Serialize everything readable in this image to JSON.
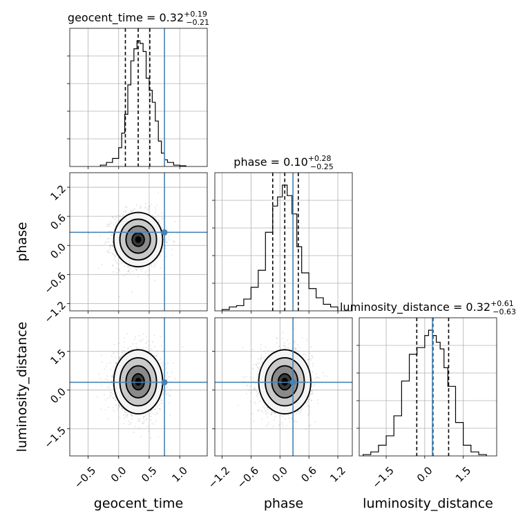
{
  "chart_data": {
    "type": "corner",
    "parameters": [
      "geocent_time",
      "phase",
      "luminosity_distance"
    ],
    "ranges": [
      [
        -0.8,
        1.45
      ],
      [
        -1.35,
        1.5
      ],
      [
        -2.55,
        2.8
      ]
    ],
    "ticks": [
      {
        "values": [
          -0.5,
          0.0,
          0.5,
          1.0
        ],
        "labels": [
          "−0.5",
          "0.0",
          "0.5",
          "1.0"
        ]
      },
      {
        "values": [
          -1.2,
          -0.6,
          0.0,
          0.6,
          1.2
        ],
        "labels": [
          "−1.2",
          "−0.6",
          "0.0",
          "0.6",
          "1.2"
        ]
      },
      {
        "values": [
          -1.5,
          0.0,
          1.5
        ],
        "labels": [
          "−1.5",
          "0.0",
          "1.5"
        ]
      }
    ],
    "truths": [
      0.75,
      0.27,
      0.3
    ],
    "grid": true,
    "truth_color": "#4682b4",
    "histograms": [
      {
        "parameter": "geocent_time",
        "title": {
          "name": "geocent_time",
          "median": "0.32",
          "plus": "+0.19",
          "minus": "−0.21"
        },
        "median": 0.32,
        "q_low": 0.11,
        "q_high": 0.51,
        "bin_edges": [
          -0.3,
          -0.2,
          -0.1,
          0.0,
          0.05,
          0.1,
          0.15,
          0.2,
          0.25,
          0.3,
          0.35,
          0.4,
          0.45,
          0.5,
          0.55,
          0.6,
          0.65,
          0.7,
          0.75,
          0.8,
          0.9,
          1.0,
          1.1
        ],
        "counts": [
          1,
          3,
          6,
          14,
          25,
          39,
          61,
          79,
          88,
          94,
          92,
          86,
          66,
          57,
          48,
          34,
          19,
          10,
          5,
          3,
          1,
          0.5
        ]
      },
      {
        "parameter": "phase",
        "title": {
          "name": "phase",
          "median": "0.10",
          "plus": "+0.28",
          "minus": "−0.25"
        },
        "median": 0.1,
        "q_low": -0.15,
        "q_high": 0.38,
        "bin_edges": [
          -1.2,
          -1.05,
          -0.9,
          -0.75,
          -0.6,
          -0.45,
          -0.3,
          -0.15,
          -0.05,
          0.05,
          0.15,
          0.25,
          0.35,
          0.45,
          0.6,
          0.75,
          0.9,
          1.05,
          1.2
        ],
        "counts": [
          1,
          3,
          4,
          9,
          18,
          31,
          60,
          80,
          87,
          96,
          88,
          74,
          49,
          29,
          17,
          10,
          5,
          3
        ]
      },
      {
        "parameter": "luminosity_distance",
        "title": {
          "name": "luminosity_distance",
          "median": "0.32",
          "plus": "+0.61",
          "minus": "−0.63"
        },
        "median": 0.32,
        "q_low": -0.31,
        "q_high": 0.93,
        "bin_edges": [
          -2.4,
          -2.1,
          -1.8,
          -1.5,
          -1.2,
          -0.9,
          -0.6,
          -0.3,
          0.0,
          0.15,
          0.3,
          0.45,
          0.6,
          0.75,
          0.9,
          1.2,
          1.5,
          1.8,
          2.1,
          2.4
        ],
        "counts": [
          1,
          3,
          8,
          15,
          30,
          56,
          76,
          81,
          90,
          94,
          90,
          85,
          80,
          66,
          52,
          25,
          8,
          3,
          1
        ]
      }
    ],
    "panels_2d": [
      {
        "x": "geocent_time",
        "y": "phase",
        "mean": [
          0.32,
          0.12
        ],
        "sigma": [
          0.2,
          0.28
        ],
        "levels": [
          0.5,
          1.0,
          1.5,
          2.0
        ]
      },
      {
        "x": "geocent_time",
        "y": "luminosity_distance",
        "mean": [
          0.32,
          0.32
        ],
        "sigma": [
          0.2,
          0.62
        ],
        "levels": [
          0.5,
          1.0,
          1.5,
          2.0
        ]
      },
      {
        "x": "phase",
        "y": "luminosity_distance",
        "mean": [
          0.1,
          0.32
        ],
        "sigma": [
          0.27,
          0.62
        ],
        "levels": [
          0.5,
          1.0,
          1.5,
          2.0
        ]
      }
    ],
    "axis_labels": {
      "x": [
        "geocent_time",
        "phase",
        "luminosity_distance"
      ],
      "y": [
        "phase",
        "luminosity_distance"
      ]
    }
  }
}
